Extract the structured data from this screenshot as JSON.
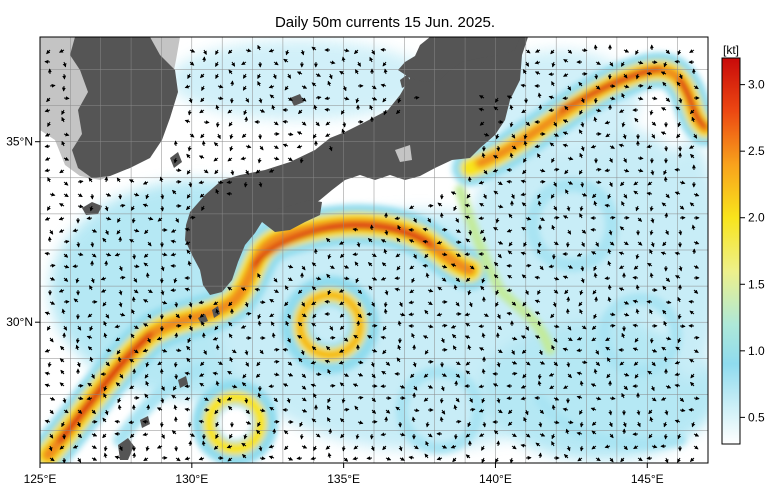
{
  "title": "Daily 50m currents 15 Jun. 2025.",
  "map": {
    "lon_range": [
      125,
      147
    ],
    "lat_range": [
      26.1,
      37.9
    ],
    "x_ticks": [
      {
        "lon": 125,
        "label": "125°E"
      },
      {
        "lon": 130,
        "label": "130°E"
      },
      {
        "lon": 135,
        "label": "135°E"
      },
      {
        "lon": 140,
        "label": "140°E"
      },
      {
        "lon": 145,
        "label": "145°E"
      }
    ],
    "y_ticks": [
      {
        "lat": 35,
        "label": "35°N"
      },
      {
        "lat": 30,
        "label": "30°N"
      }
    ],
    "grid_step_deg": 1,
    "land_color": "#555555",
    "outer_land_color": "#c4c4c4"
  },
  "colorbar": {
    "unit": "[kt]",
    "range": [
      0.3,
      3.2
    ],
    "ticks": [
      {
        "value": 3.0,
        "label": "3.0"
      },
      {
        "value": 2.5,
        "label": "2.5"
      },
      {
        "value": 2.0,
        "label": "2.0"
      },
      {
        "value": 1.5,
        "label": "1.5"
      },
      {
        "value": 1.0,
        "label": "1.0"
      },
      {
        "value": 0.5,
        "label": "0.5"
      }
    ],
    "stops": [
      {
        "value": 0.3,
        "color": "#ffffff"
      },
      {
        "value": 0.55,
        "color": "#d2f1f8"
      },
      {
        "value": 0.9,
        "color": "#8fdbee"
      },
      {
        "value": 1.2,
        "color": "#aee8d8"
      },
      {
        "value": 1.6,
        "color": "#eef08a"
      },
      {
        "value": 2.0,
        "color": "#f8e41c"
      },
      {
        "value": 2.4,
        "color": "#f8a21c"
      },
      {
        "value": 2.8,
        "color": "#ec4812"
      },
      {
        "value": 3.2,
        "color": "#c80a0a"
      }
    ]
  }
}
